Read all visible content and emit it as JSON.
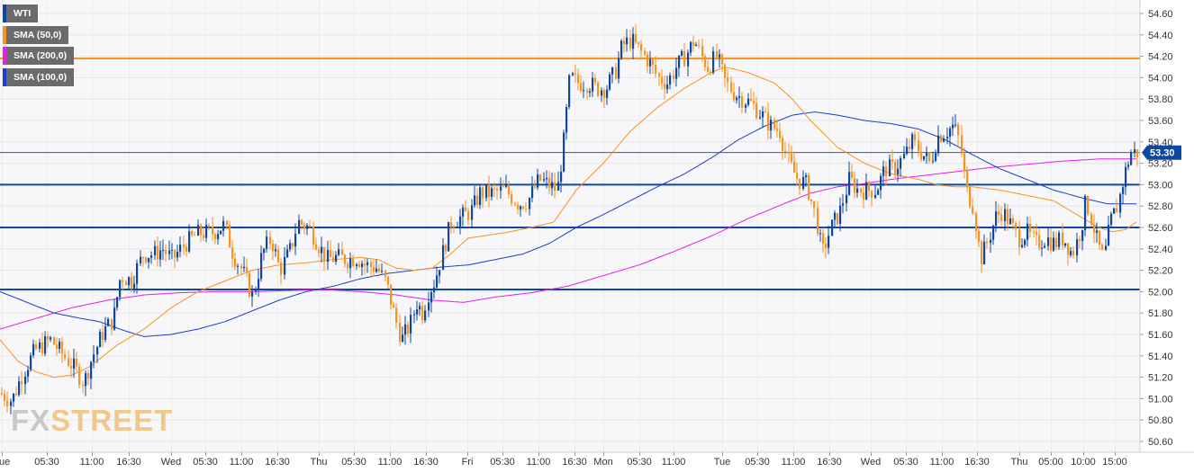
{
  "legend": [
    {
      "label": "WTI",
      "color": "#0d47a1"
    },
    {
      "label": "SMA (50,0)",
      "color": "#f7931e"
    },
    {
      "label": "SMA (200,0)",
      "color": "#e61ee6"
    },
    {
      "label": "SMA (100,0)",
      "color": "#1e3ccc"
    }
  ],
  "watermark": {
    "part1": "FX",
    "part2": "STREET"
  },
  "colors": {
    "up_candle": "#0d47a1",
    "down_candle": "#f7931e",
    "sma50": "#f7931e",
    "sma100": "#1e3ccc",
    "sma200": "#e61ee6",
    "support_resistance": "#0d47a1",
    "resistance_top": "#f7931e",
    "price_badge": "#0d47a1"
  },
  "chart_data": {
    "type": "candlestick",
    "symbol": "WTI",
    "y_axis_labels": [
      "54.60",
      "54.40",
      "54.20",
      "54.00",
      "53.80",
      "53.60",
      "53.40",
      "53.20",
      "53.00",
      "52.80",
      "52.60",
      "52.40",
      "52.20",
      "52.00",
      "51.80",
      "51.60",
      "51.40",
      "51.20",
      "51.00",
      "50.80",
      "50.60"
    ],
    "ylim": [
      50.6,
      54.6
    ],
    "x_axis_labels": [
      {
        "label": "Tue",
        "t": 2
      },
      {
        "label": "05:30",
        "t": 52
      },
      {
        "label": "11:00",
        "t": 102
      },
      {
        "label": "16:30",
        "t": 143
      },
      {
        "label": "Wed",
        "t": 190
      },
      {
        "label": "05:30",
        "t": 228
      },
      {
        "label": "11:00",
        "t": 268
      },
      {
        "label": "16:30",
        "t": 308
      },
      {
        "label": "Thu",
        "t": 354
      },
      {
        "label": "05:30",
        "t": 393
      },
      {
        "label": "11:00",
        "t": 433
      },
      {
        "label": "16:30",
        "t": 473
      },
      {
        "label": "Fri",
        "t": 519
      },
      {
        "label": "05:30",
        "t": 558
      },
      {
        "label": "11:00",
        "t": 598
      },
      {
        "label": "16:30",
        "t": 638
      },
      {
        "label": "Mon",
        "t": 670
      },
      {
        "label": "05:30",
        "t": 710
      },
      {
        "label": "11:00",
        "t": 748
      },
      {
        "label": "Tue",
        "t": 802
      },
      {
        "label": "05:30",
        "t": 841
      },
      {
        "label": "11:00",
        "t": 881
      },
      {
        "label": "16:30",
        "t": 921
      },
      {
        "label": "Wed",
        "t": 967
      },
      {
        "label": "05:30",
        "t": 1006
      },
      {
        "label": "11:00",
        "t": 1046
      },
      {
        "label": "16:30",
        "t": 1085
      },
      {
        "label": "Thu",
        "t": 1132
      },
      {
        "label": "05:00",
        "t": 1167
      },
      {
        "label": "10:00",
        "t": 1203
      },
      {
        "label": "15:00",
        "t": 1238
      }
    ],
    "price_keys": [
      [
        0,
        51.05
      ],
      [
        12,
        50.98
      ],
      [
        25,
        51.25
      ],
      [
        38,
        51.45
      ],
      [
        55,
        51.55
      ],
      [
        70,
        51.4
      ],
      [
        85,
        51.25
      ],
      [
        92,
        51.15
      ],
      [
        100,
        51.35
      ],
      [
        112,
        51.6
      ],
      [
        125,
        51.75
      ],
      [
        133,
        52.15
      ],
      [
        145,
        52.1
      ],
      [
        158,
        52.35
      ],
      [
        170,
        52.35
      ],
      [
        180,
        52.4
      ],
      [
        190,
        52.3
      ],
      [
        205,
        52.45
      ],
      [
        220,
        52.55
      ],
      [
        235,
        52.55
      ],
      [
        248,
        52.62
      ],
      [
        258,
        52.35
      ],
      [
        268,
        52.2
      ],
      [
        280,
        51.95
      ],
      [
        290,
        52.35
      ],
      [
        300,
        52.5
      ],
      [
        310,
        52.2
      ],
      [
        322,
        52.4
      ],
      [
        330,
        52.65
      ],
      [
        342,
        52.6
      ],
      [
        352,
        52.45
      ],
      [
        362,
        52.3
      ],
      [
        372,
        52.32
      ],
      [
        385,
        52.3
      ],
      [
        395,
        52.32
      ],
      [
        405,
        52.25
      ],
      [
        418,
        52.22
      ],
      [
        428,
        52.08
      ],
      [
        438,
        51.75
      ],
      [
        445,
        51.55
      ],
      [
        455,
        51.7
      ],
      [
        462,
        51.9
      ],
      [
        468,
        51.8
      ],
      [
        475,
        52.0
      ],
      [
        482,
        52.1
      ],
      [
        490,
        52.35
      ],
      [
        500,
        52.65
      ],
      [
        512,
        52.7
      ],
      [
        522,
        52.75
      ],
      [
        532,
        52.92
      ],
      [
        545,
        52.92
      ],
      [
        560,
        52.95
      ],
      [
        575,
        52.82
      ],
      [
        585,
        52.85
      ],
      [
        598,
        53.05
      ],
      [
        608,
        53.0
      ],
      [
        618,
        52.95
      ],
      [
        625,
        53.4
      ],
      [
        632,
        54.0
      ],
      [
        642,
        53.95
      ],
      [
        652,
        53.95
      ],
      [
        662,
        53.9
      ],
      [
        672,
        53.9
      ],
      [
        682,
        54.05
      ],
      [
        690,
        54.3
      ],
      [
        700,
        54.35
      ],
      [
        710,
        54.25
      ],
      [
        720,
        54.15
      ],
      [
        730,
        54.0
      ],
      [
        740,
        53.95
      ],
      [
        750,
        54.1
      ],
      [
        760,
        54.2
      ],
      [
        770,
        54.35
      ],
      [
        778,
        54.2
      ],
      [
        785,
        54.1
      ],
      [
        795,
        54.2
      ],
      [
        805,
        53.95
      ],
      [
        815,
        53.85
      ],
      [
        825,
        53.8
      ],
      [
        835,
        53.75
      ],
      [
        845,
        53.65
      ],
      [
        855,
        53.55
      ],
      [
        865,
        53.5
      ],
      [
        875,
        53.2
      ],
      [
        885,
        53.05
      ],
      [
        895,
        53.0
      ],
      [
        905,
        52.7
      ],
      [
        912,
        52.35
      ],
      [
        922,
        52.6
      ],
      [
        932,
        52.75
      ],
      [
        942,
        53.05
      ],
      [
        952,
        52.95
      ],
      [
        962,
        52.95
      ],
      [
        972,
        52.95
      ],
      [
        982,
        53.15
      ],
      [
        992,
        53.15
      ],
      [
        1002,
        53.25
      ],
      [
        1012,
        53.4
      ],
      [
        1022,
        53.3
      ],
      [
        1032,
        53.2
      ],
      [
        1040,
        53.45
      ],
      [
        1050,
        53.5
      ],
      [
        1058,
        53.55
      ],
      [
        1065,
        53.4
      ],
      [
        1072,
        52.95
      ],
      [
        1080,
        52.8
      ],
      [
        1088,
        52.3
      ],
      [
        1095,
        52.45
      ],
      [
        1105,
        52.7
      ],
      [
        1112,
        52.75
      ],
      [
        1120,
        52.65
      ],
      [
        1130,
        52.5
      ],
      [
        1140,
        52.55
      ],
      [
        1150,
        52.45
      ],
      [
        1160,
        52.5
      ],
      [
        1170,
        52.45
      ],
      [
        1180,
        52.5
      ],
      [
        1190,
        52.35
      ],
      [
        1200,
        52.6
      ],
      [
        1205,
        52.85
      ],
      [
        1212,
        52.65
      ],
      [
        1218,
        52.45
      ],
      [
        1225,
        52.3
      ],
      [
        1232,
        52.65
      ],
      [
        1240,
        52.8
      ],
      [
        1248,
        53.1
      ],
      [
        1255,
        53.3
      ],
      [
        1262,
        53.3
      ]
    ],
    "sma50_keys": [
      [
        0,
        51.55
      ],
      [
        20,
        51.35
      ],
      [
        40,
        51.25
      ],
      [
        60,
        51.2
      ],
      [
        80,
        51.22
      ],
      [
        100,
        51.3
      ],
      [
        130,
        51.5
      ],
      [
        160,
        51.65
      ],
      [
        190,
        51.85
      ],
      [
        220,
        52.0
      ],
      [
        250,
        52.1
      ],
      [
        280,
        52.2
      ],
      [
        310,
        52.25
      ],
      [
        340,
        52.27
      ],
      [
        370,
        52.3
      ],
      [
        400,
        52.32
      ],
      [
        420,
        52.3
      ],
      [
        440,
        52.22
      ],
      [
        460,
        52.2
      ],
      [
        480,
        52.22
      ],
      [
        500,
        52.35
      ],
      [
        520,
        52.5
      ],
      [
        560,
        52.55
      ],
      [
        590,
        52.6
      ],
      [
        615,
        52.65
      ],
      [
        640,
        52.95
      ],
      [
        670,
        53.2
      ],
      [
        700,
        53.5
      ],
      [
        730,
        53.72
      ],
      [
        760,
        53.9
      ],
      [
        790,
        54.05
      ],
      [
        805,
        54.1
      ],
      [
        830,
        54.05
      ],
      [
        860,
        53.95
      ],
      [
        880,
        53.8
      ],
      [
        900,
        53.6
      ],
      [
        930,
        53.35
      ],
      [
        960,
        53.2
      ],
      [
        990,
        53.1
      ],
      [
        1020,
        53.05
      ],
      [
        1040,
        53.0
      ],
      [
        1060,
        52.98
      ],
      [
        1080,
        52.98
      ],
      [
        1110,
        52.95
      ],
      [
        1140,
        52.9
      ],
      [
        1170,
        52.85
      ],
      [
        1200,
        52.7
      ],
      [
        1220,
        52.6
      ],
      [
        1235,
        52.56
      ],
      [
        1250,
        52.58
      ],
      [
        1262,
        52.65
      ]
    ],
    "sma100_keys": [
      [
        0,
        52.0
      ],
      [
        30,
        51.9
      ],
      [
        60,
        51.8
      ],
      [
        90,
        51.75
      ],
      [
        110,
        51.72
      ],
      [
        140,
        51.63
      ],
      [
        160,
        51.58
      ],
      [
        190,
        51.6
      ],
      [
        220,
        51.65
      ],
      [
        250,
        51.72
      ],
      [
        280,
        51.82
      ],
      [
        310,
        51.92
      ],
      [
        340,
        52.0
      ],
      [
        370,
        52.05
      ],
      [
        400,
        52.12
      ],
      [
        430,
        52.17
      ],
      [
        460,
        52.2
      ],
      [
        490,
        52.23
      ],
      [
        520,
        52.25
      ],
      [
        550,
        52.3
      ],
      [
        580,
        52.35
      ],
      [
        610,
        52.45
      ],
      [
        640,
        52.6
      ],
      [
        670,
        52.72
      ],
      [
        700,
        52.85
      ],
      [
        730,
        52.98
      ],
      [
        760,
        53.1
      ],
      [
        790,
        53.25
      ],
      [
        820,
        53.42
      ],
      [
        850,
        53.55
      ],
      [
        880,
        53.65
      ],
      [
        905,
        53.68
      ],
      [
        930,
        53.65
      ],
      [
        960,
        53.6
      ],
      [
        990,
        53.57
      ],
      [
        1020,
        53.52
      ],
      [
        1050,
        53.42
      ],
      [
        1080,
        53.28
      ],
      [
        1110,
        53.15
      ],
      [
        1140,
        53.05
      ],
      [
        1170,
        52.95
      ],
      [
        1200,
        52.88
      ],
      [
        1230,
        52.82
      ],
      [
        1262,
        52.82
      ]
    ],
    "sma200_keys": [
      [
        0,
        51.65
      ],
      [
        40,
        51.75
      ],
      [
        80,
        51.85
      ],
      [
        120,
        51.92
      ],
      [
        160,
        51.97
      ],
      [
        200,
        51.99
      ],
      [
        240,
        52.0
      ],
      [
        280,
        52.0
      ],
      [
        320,
        52.01
      ],
      [
        360,
        52.02
      ],
      [
        400,
        52.0
      ],
      [
        440,
        51.97
      ],
      [
        480,
        51.92
      ],
      [
        515,
        51.9
      ],
      [
        550,
        51.95
      ],
      [
        590,
        51.99
      ],
      [
        630,
        52.05
      ],
      [
        670,
        52.15
      ],
      [
        710,
        52.25
      ],
      [
        750,
        52.38
      ],
      [
        790,
        52.52
      ],
      [
        830,
        52.68
      ],
      [
        870,
        52.82
      ],
      [
        900,
        52.92
      ],
      [
        930,
        52.98
      ],
      [
        960,
        53.01
      ],
      [
        990,
        53.05
      ],
      [
        1020,
        53.08
      ],
      [
        1060,
        53.12
      ],
      [
        1100,
        53.16
      ],
      [
        1140,
        53.19
      ],
      [
        1180,
        53.22
      ],
      [
        1220,
        53.24
      ],
      [
        1262,
        53.24
      ]
    ],
    "horizontal_levels": [
      {
        "value": 54.18,
        "role": "resistance",
        "color": "#f7931e"
      },
      {
        "value": 53.0,
        "role": "support",
        "color": "#0d47a1"
      },
      {
        "value": 52.6,
        "role": "support",
        "color": "#0d47a1"
      },
      {
        "value": 52.02,
        "role": "support",
        "color": "#0d47a1"
      }
    ],
    "last_price": {
      "value": 53.3,
      "label": "53.30"
    },
    "grid": true,
    "legend_position": "top-left"
  }
}
